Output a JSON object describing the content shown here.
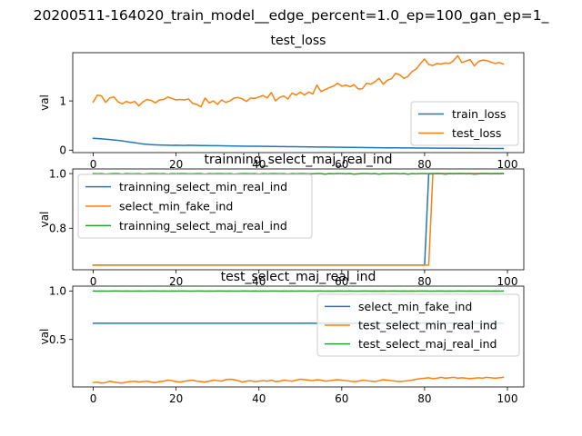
{
  "figure": {
    "suptitle": "20200511-164020_train_model__edge_percent=1.0_ep=100_gan_ep=1_"
  },
  "chart_data": [
    {
      "type": "line",
      "title": "test_loss",
      "xlabel": "",
      "ylabel": "val",
      "xlim": [
        -4.95,
        103.95
      ],
      "ylim": [
        -0.05,
        1.98
      ],
      "xticks": [
        0,
        20,
        40,
        60,
        80,
        100
      ],
      "yticks": [
        0,
        1
      ],
      "grid": false,
      "legend_position": "lower right",
      "series": [
        {
          "name": "train_loss",
          "color": "#1f77b4",
          "values": [
            0.24,
            0.235,
            0.23,
            0.222,
            0.215,
            0.207,
            0.198,
            0.188,
            0.175,
            0.163,
            0.15,
            0.138,
            0.126,
            0.118,
            0.112,
            0.108,
            0.105,
            0.102,
            0.1,
            0.098,
            0.1,
            0.098,
            0.096,
            0.099,
            0.097,
            0.095,
            0.094,
            0.093,
            0.091,
            0.09,
            0.09,
            0.088,
            0.087,
            0.085,
            0.084,
            0.082,
            0.081,
            0.08,
            0.079,
            0.078,
            0.078,
            0.077,
            0.076,
            0.075,
            0.074,
            0.073,
            0.072,
            0.071,
            0.07,
            0.069,
            0.068,
            0.067,
            0.066,
            0.065,
            0.064,
            0.063,
            0.062,
            0.061,
            0.06,
            0.059,
            0.058,
            0.057,
            0.056,
            0.055,
            0.054,
            0.053,
            0.052,
            0.051,
            0.05,
            0.049,
            0.048,
            0.047,
            0.046,
            0.046,
            0.045,
            0.045,
            0.044,
            0.044,
            0.043,
            0.043,
            0.042,
            0.042,
            0.041,
            0.041,
            0.04,
            0.04,
            0.039,
            0.039,
            0.038,
            0.038,
            0.037,
            0.037,
            0.036,
            0.036,
            0.035,
            0.035,
            0.034,
            0.034,
            0.033,
            0.033
          ]
        },
        {
          "name": "test_loss",
          "color": "#ff7f0e",
          "values": [
            0.98,
            1.12,
            1.1,
            0.97,
            1.06,
            1.08,
            0.98,
            0.94,
            0.99,
            0.96,
            0.99,
            0.9,
            0.98,
            1.03,
            1.01,
            0.96,
            1.02,
            1.03,
            1.08,
            1.05,
            1.02,
            1.03,
            1.02,
            1.04,
            0.95,
            0.93,
            0.88,
            1.06,
            0.96,
            1.0,
            0.93,
            1.02,
            0.97,
            1.0,
            1.06,
            1.07,
            1.04,
            0.99,
            1.06,
            1.05,
            1.08,
            1.11,
            1.06,
            1.17,
            1.0,
            1.07,
            1.1,
            1.04,
            1.16,
            1.12,
            1.18,
            1.12,
            1.18,
            1.14,
            1.32,
            1.19,
            1.23,
            1.27,
            1.3,
            1.36,
            1.3,
            1.32,
            1.29,
            1.33,
            1.24,
            1.25,
            1.36,
            1.34,
            1.39,
            1.46,
            1.34,
            1.42,
            1.45,
            1.56,
            1.53,
            1.46,
            1.5,
            1.6,
            1.65,
            1.76,
            1.85,
            1.74,
            1.72,
            1.76,
            1.75,
            1.77,
            1.76,
            1.82,
            1.92,
            1.78,
            1.81,
            1.84,
            1.71,
            1.8,
            1.83,
            1.82,
            1.79,
            1.76,
            1.78,
            1.75
          ]
        }
      ]
    },
    {
      "type": "line",
      "title": "trainning_select_maj_real_ind",
      "xlabel": "",
      "ylabel": "val",
      "xlim": [
        -4.95,
        103.95
      ],
      "ylim": [
        0.648,
        1.017
      ],
      "xticks": [
        0,
        20,
        40,
        60,
        80,
        100
      ],
      "yticks": [
        0.8,
        1.0
      ],
      "ytick_labels": [
        "0.8",
        "1.0"
      ],
      "grid": false,
      "legend_position": "upper left",
      "series": [
        {
          "name": "trainning_select_min_real_ind",
          "color": "#1f77b4",
          "values": [
            0.665,
            0.665,
            0.665,
            0.665,
            0.665,
            0.665,
            0.665,
            0.665,
            0.665,
            0.665,
            0.665,
            0.665,
            0.665,
            0.665,
            0.665,
            0.665,
            0.665,
            0.665,
            0.665,
            0.665,
            0.665,
            0.665,
            0.665,
            0.665,
            0.665,
            0.665,
            0.665,
            0.665,
            0.665,
            0.665,
            0.665,
            0.665,
            0.665,
            0.665,
            0.665,
            0.665,
            0.665,
            0.665,
            0.665,
            0.665,
            0.665,
            0.665,
            0.665,
            0.665,
            0.665,
            0.665,
            0.665,
            0.665,
            0.665,
            0.665,
            0.665,
            0.665,
            0.665,
            0.665,
            0.665,
            0.665,
            0.665,
            0.665,
            0.665,
            0.665,
            0.665,
            0.665,
            0.665,
            0.665,
            0.665,
            0.665,
            0.665,
            0.665,
            0.665,
            0.665,
            0.665,
            0.665,
            0.665,
            0.665,
            0.665,
            0.665,
            0.665,
            0.665,
            0.665,
            0.665,
            0.665,
            1.0,
            1.0,
            1.0,
            1.0,
            1.0,
            1.0,
            1.0,
            1.0,
            1.0,
            1.0,
            1.0,
            1.0,
            1.0,
            1.0,
            1.0,
            1.0,
            1.0,
            1.0,
            1.0
          ]
        },
        {
          "name": "select_min_fake_ind",
          "color": "#ff7f0e",
          "values": [
            0.665,
            0.665,
            0.665,
            0.665,
            0.665,
            0.665,
            0.665,
            0.665,
            0.665,
            0.665,
            0.665,
            0.665,
            0.665,
            0.665,
            0.665,
            0.665,
            0.665,
            0.665,
            0.665,
            0.665,
            0.665,
            0.665,
            0.665,
            0.665,
            0.665,
            0.665,
            0.665,
            0.665,
            0.665,
            0.665,
            0.665,
            0.665,
            0.665,
            0.665,
            0.665,
            0.665,
            0.665,
            0.665,
            0.665,
            0.665,
            0.665,
            0.665,
            0.665,
            0.665,
            0.665,
            0.665,
            0.665,
            0.665,
            0.665,
            0.665,
            0.665,
            0.665,
            0.665,
            0.665,
            0.665,
            0.665,
            0.665,
            0.665,
            0.665,
            0.665,
            0.665,
            0.665,
            0.665,
            0.665,
            0.665,
            0.665,
            0.665,
            0.665,
            0.665,
            0.665,
            0.665,
            0.665,
            0.665,
            0.665,
            0.665,
            0.665,
            0.665,
            0.665,
            0.665,
            0.665,
            0.665,
            0.665,
            1.0,
            1.0,
            1.0,
            1.0,
            1.0,
            1.0,
            1.0,
            1.0,
            1.0,
            1.0,
            1.0,
            1.0,
            1.0,
            1.0,
            1.0,
            1.0,
            1.0,
            1.0
          ]
        },
        {
          "name": "trainning_select_maj_real_ind",
          "color": "#2ca02c",
          "values": [
            1.0,
            0.999,
            1.0,
            0.998,
            0.999,
            1.0,
            1.0,
            0.998,
            1.0,
            0.999,
            0.999,
            1.0,
            0.998,
            0.999,
            1.0,
            1.0,
            0.999,
            1.0,
            0.998,
            1.0,
            0.999,
            1.0,
            1.0,
            0.999,
            0.999,
            1.0,
            1.0,
            0.998,
            1.0,
            0.999,
            1.0,
            1.0,
            0.999,
            1.0,
            0.998,
            0.999,
            1.0,
            1.0,
            0.999,
            1.0,
            0.998,
            1.0,
            0.999,
            1.0,
            1.0,
            0.999,
            1.0,
            0.998,
            1.0,
            0.999,
            1.0,
            1.0,
            0.999,
            0.999,
            1.0,
            1.0,
            0.998,
            1.0,
            0.999,
            1.0,
            1.0,
            0.999,
            1.0,
            0.998,
            0.999,
            1.0,
            1.0,
            0.999,
            1.0,
            0.998,
            1.0,
            0.999,
            1.0,
            1.0,
            0.999,
            1.0,
            0.998,
            1.0,
            0.999,
            1.0,
            1.0,
            0.999,
            0.999,
            1.0,
            1.0,
            0.998,
            1.0,
            0.999,
            1.0,
            1.0,
            0.999,
            1.0,
            0.998,
            0.999,
            1.0,
            1.0,
            0.999,
            1.0,
            0.999,
            1.0
          ]
        }
      ]
    },
    {
      "type": "line",
      "title": "test_select_maj_real_ind",
      "xlabel": "",
      "ylabel": "val",
      "xlim": [
        -4.95,
        103.95
      ],
      "ylim": [
        0.01,
        1.05
      ],
      "xticks": [
        0,
        20,
        40,
        60,
        80,
        100
      ],
      "yticks": [
        0.5,
        1.0
      ],
      "ytick_labels": [
        "0.5",
        "1.0"
      ],
      "grid": false,
      "legend_position": "upper right",
      "series": [
        {
          "name": "select_min_fake_ind",
          "color": "#1f77b4",
          "values": [
            0.667,
            0.667,
            0.667,
            0.667,
            0.667,
            0.667,
            0.667,
            0.667,
            0.667,
            0.667,
            0.667,
            0.667,
            0.667,
            0.667,
            0.667,
            0.667,
            0.667,
            0.667,
            0.667,
            0.667,
            0.667,
            0.667,
            0.667,
            0.667,
            0.667,
            0.667,
            0.667,
            0.667,
            0.667,
            0.667,
            0.667,
            0.667,
            0.667,
            0.667,
            0.667,
            0.667,
            0.667,
            0.667,
            0.667,
            0.667,
            0.667,
            0.667,
            0.667,
            0.667,
            0.667,
            0.667,
            0.667,
            0.667,
            0.667,
            0.667,
            0.667,
            0.667,
            0.667,
            0.667,
            0.667,
            0.667,
            0.667,
            0.667,
            0.667,
            0.667,
            0.667,
            0.667,
            0.667,
            0.667,
            0.667,
            0.667,
            0.667,
            0.667,
            0.667,
            0.667,
            0.667,
            0.667,
            0.667,
            0.667,
            0.667,
            0.667,
            0.667,
            0.667,
            0.667,
            0.667,
            0.667,
            0.667,
            0.667,
            0.667,
            0.667,
            0.667,
            0.667,
            0.667,
            0.667,
            0.667,
            0.667,
            0.667,
            0.667,
            0.667,
            0.667,
            0.667,
            0.667,
            0.667,
            0.667,
            0.667
          ]
        },
        {
          "name": "test_select_min_real_ind",
          "color": "#ff7f0e",
          "values": [
            0.055,
            0.06,
            0.05,
            0.055,
            0.07,
            0.06,
            0.055,
            0.05,
            0.06,
            0.065,
            0.07,
            0.06,
            0.065,
            0.07,
            0.06,
            0.055,
            0.065,
            0.07,
            0.08,
            0.075,
            0.065,
            0.06,
            0.07,
            0.075,
            0.08,
            0.07,
            0.065,
            0.06,
            0.07,
            0.08,
            0.075,
            0.07,
            0.085,
            0.09,
            0.085,
            0.075,
            0.06,
            0.07,
            0.075,
            0.065,
            0.07,
            0.075,
            0.07,
            0.08,
            0.065,
            0.07,
            0.08,
            0.075,
            0.07,
            0.08,
            0.09,
            0.085,
            0.08,
            0.075,
            0.085,
            0.08,
            0.07,
            0.075,
            0.08,
            0.085,
            0.08,
            0.075,
            0.07,
            0.065,
            0.07,
            0.08,
            0.075,
            0.07,
            0.065,
            0.075,
            0.085,
            0.08,
            0.075,
            0.07,
            0.065,
            0.07,
            0.075,
            0.08,
            0.09,
            0.095,
            0.1,
            0.105,
            0.095,
            0.1,
            0.11,
            0.1,
            0.105,
            0.11,
            0.1,
            0.105,
            0.1,
            0.095,
            0.1,
            0.105,
            0.1,
            0.11,
            0.105,
            0.1,
            0.105,
            0.11
          ]
        },
        {
          "name": "test_select_maj_real_ind",
          "color": "#2ca02c",
          "values": [
            1.0,
            0.999,
            1.0,
            0.998,
            0.999,
            1.0,
            1.0,
            0.999,
            1.0,
            0.999,
            0.999,
            1.0,
            0.999,
            0.999,
            1.0,
            1.0,
            0.999,
            1.0,
            0.998,
            1.0,
            0.999,
            1.0,
            1.0,
            0.999,
            0.999,
            1.0,
            1.0,
            0.999,
            1.0,
            0.999,
            1.0,
            1.0,
            0.999,
            1.0,
            0.998,
            0.999,
            1.0,
            1.0,
            0.999,
            1.0,
            0.999,
            1.0,
            0.999,
            1.0,
            1.0,
            0.999,
            1.0,
            0.998,
            1.0,
            0.999,
            1.0,
            1.0,
            0.999,
            0.999,
            1.0,
            1.0,
            0.999,
            1.0,
            0.999,
            1.0,
            1.0,
            0.999,
            1.0,
            0.998,
            0.999,
            1.0,
            1.0,
            0.999,
            1.0,
            0.999,
            1.0,
            0.999,
            1.0,
            1.0,
            0.999,
            1.0,
            0.998,
            1.0,
            0.999,
            1.0,
            1.0,
            0.999,
            0.999,
            1.0,
            1.0,
            0.999,
            1.0,
            0.999,
            1.0,
            1.0,
            0.999,
            1.0,
            0.998,
            0.999,
            1.0,
            1.0,
            0.999,
            1.0,
            0.999,
            1.0
          ]
        }
      ]
    }
  ]
}
